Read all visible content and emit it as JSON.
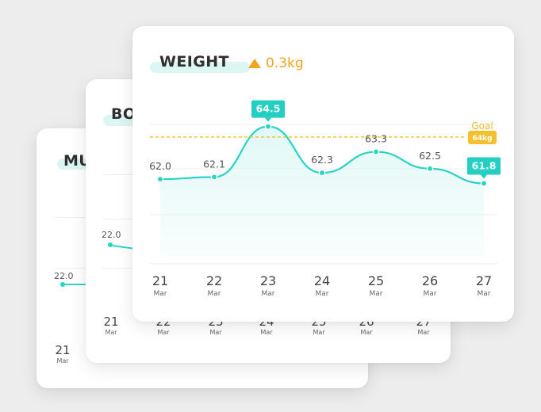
{
  "cards": {
    "back": {
      "title": "MU",
      "value": "22.0",
      "x_day": "21",
      "x_month": "Mar"
    },
    "mid": {
      "title": "BO",
      "value": "22.0",
      "x_ticks": [
        {
          "day": "21",
          "month": "Mar"
        },
        {
          "day": "22",
          "month": "Mar"
        },
        {
          "day": "23",
          "month": "Mar"
        },
        {
          "day": "24",
          "month": "Mar"
        },
        {
          "day": "25",
          "month": "Mar"
        },
        {
          "day": "26",
          "month": "Mar"
        },
        {
          "day": "27",
          "month": "Mar"
        }
      ]
    },
    "front": {
      "title": "WEIGHT",
      "delta": "0.3kg",
      "goal_label": "Goal",
      "goal_value": "64kg"
    }
  },
  "chart_data": {
    "type": "area",
    "title": "WEIGHT",
    "categories": [
      "21 Mar",
      "22 Mar",
      "23 Mar",
      "24 Mar",
      "25 Mar",
      "26 Mar",
      "27 Mar"
    ],
    "x": [
      {
        "day": "21",
        "month": "Mar"
      },
      {
        "day": "22",
        "month": "Mar"
      },
      {
        "day": "23",
        "month": "Mar"
      },
      {
        "day": "24",
        "month": "Mar"
      },
      {
        "day": "25",
        "month": "Mar"
      },
      {
        "day": "26",
        "month": "Mar"
      },
      {
        "day": "27",
        "month": "Mar"
      }
    ],
    "values": [
      62.0,
      62.1,
      64.5,
      62.3,
      63.3,
      62.5,
      61.8
    ],
    "labels": [
      "62.0",
      "62.1",
      "64.5",
      "62.3",
      "63.3",
      "62.5",
      "61.8"
    ],
    "highlight_indices": [
      2,
      6
    ],
    "goal": 64,
    "ylim": [
      60.2,
      64.6
    ],
    "grid": true,
    "colors": {
      "line": "#2ad3c6",
      "fill": "#c9f3ef",
      "badge": "#22cfc2",
      "goal": "#f3c02f",
      "delta": "#f0a520"
    }
  }
}
